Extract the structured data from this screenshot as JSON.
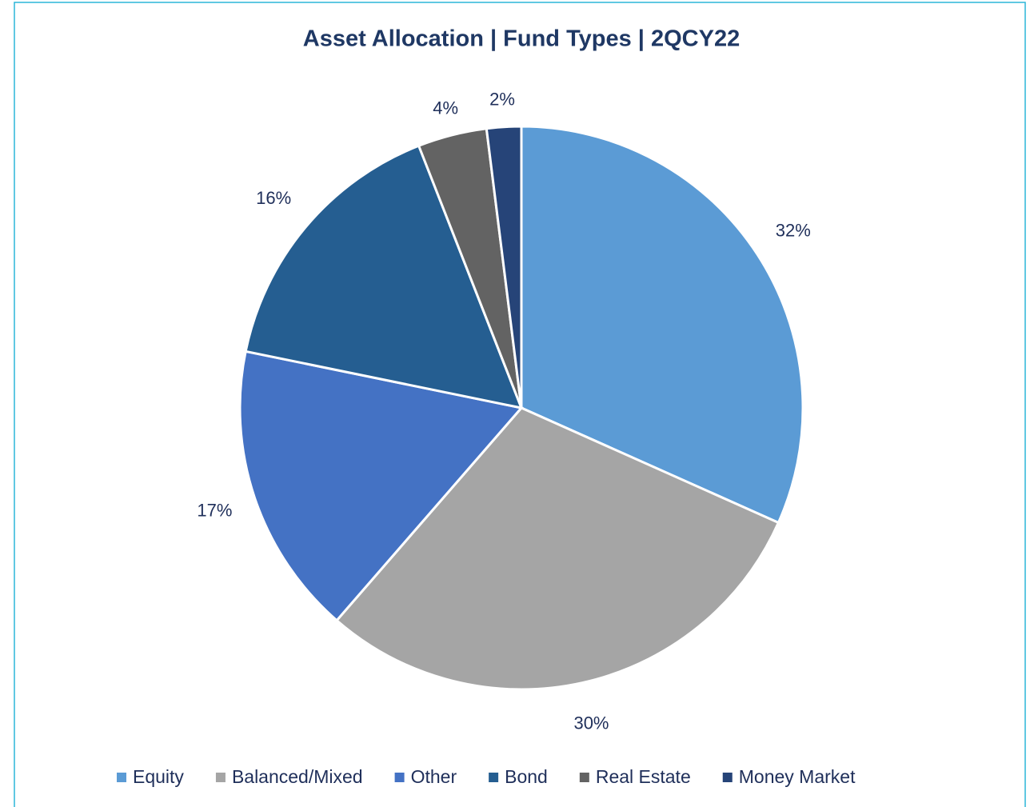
{
  "chart_data": {
    "type": "pie",
    "title": "Asset Allocation | Fund Types | 2QCY22",
    "categories": [
      "Equity",
      "Balanced/Mixed",
      "Other",
      "Bond",
      "Real Estate",
      "Money Market"
    ],
    "values": [
      32,
      30,
      17,
      16,
      4,
      2
    ],
    "value_labels": [
      "32%",
      "30%",
      "17%",
      "16%",
      "4%",
      "2%"
    ],
    "colors": [
      "#5b9bd5",
      "#a5a5a5",
      "#4472c4",
      "#255e91",
      "#636363",
      "#264478"
    ],
    "legend": "bottom"
  }
}
